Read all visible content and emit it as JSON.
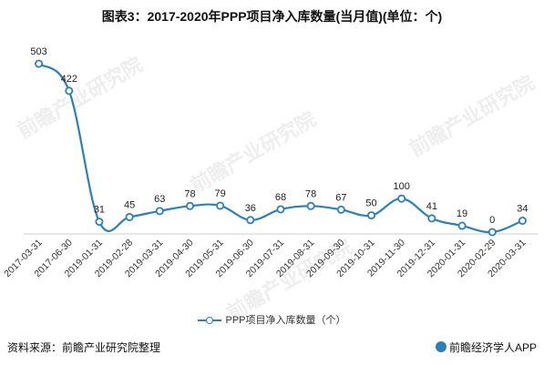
{
  "title": "图表3：2017-2020年PPP项目净入库数量(当月值)(单位：个)",
  "chart_data": {
    "type": "line",
    "categories": [
      "2017-03-31",
      "2017-06-30",
      "2019-01-31",
      "2019-02-28",
      "2019-03-31",
      "2019-04-30",
      "2019-05-31",
      "2019-06-30",
      "2019-07-31",
      "2019-08-31",
      "2019-09-30",
      "2019-10-31",
      "2019-11-30",
      "2019-12-31",
      "2020-01-31",
      "2020-02-29",
      "2020-03-31"
    ],
    "series": [
      {
        "name": "PPP项目净入库数量（个）",
        "values": [
          503,
          422,
          31,
          45,
          63,
          78,
          79,
          36,
          68,
          78,
          67,
          50,
          100,
          41,
          19,
          0,
          34
        ],
        "color": "#2d7fb8"
      }
    ],
    "data_labels": true,
    "grid": false
  },
  "footer": {
    "source": "资料来源：前瞻产业研究院整理",
    "brand": "前瞻经济学人APP"
  },
  "watermarks": [
    "前瞻产业研究院",
    "前瞻产业研究院",
    "前瞻产业研究院",
    "前瞻产业研究院"
  ]
}
